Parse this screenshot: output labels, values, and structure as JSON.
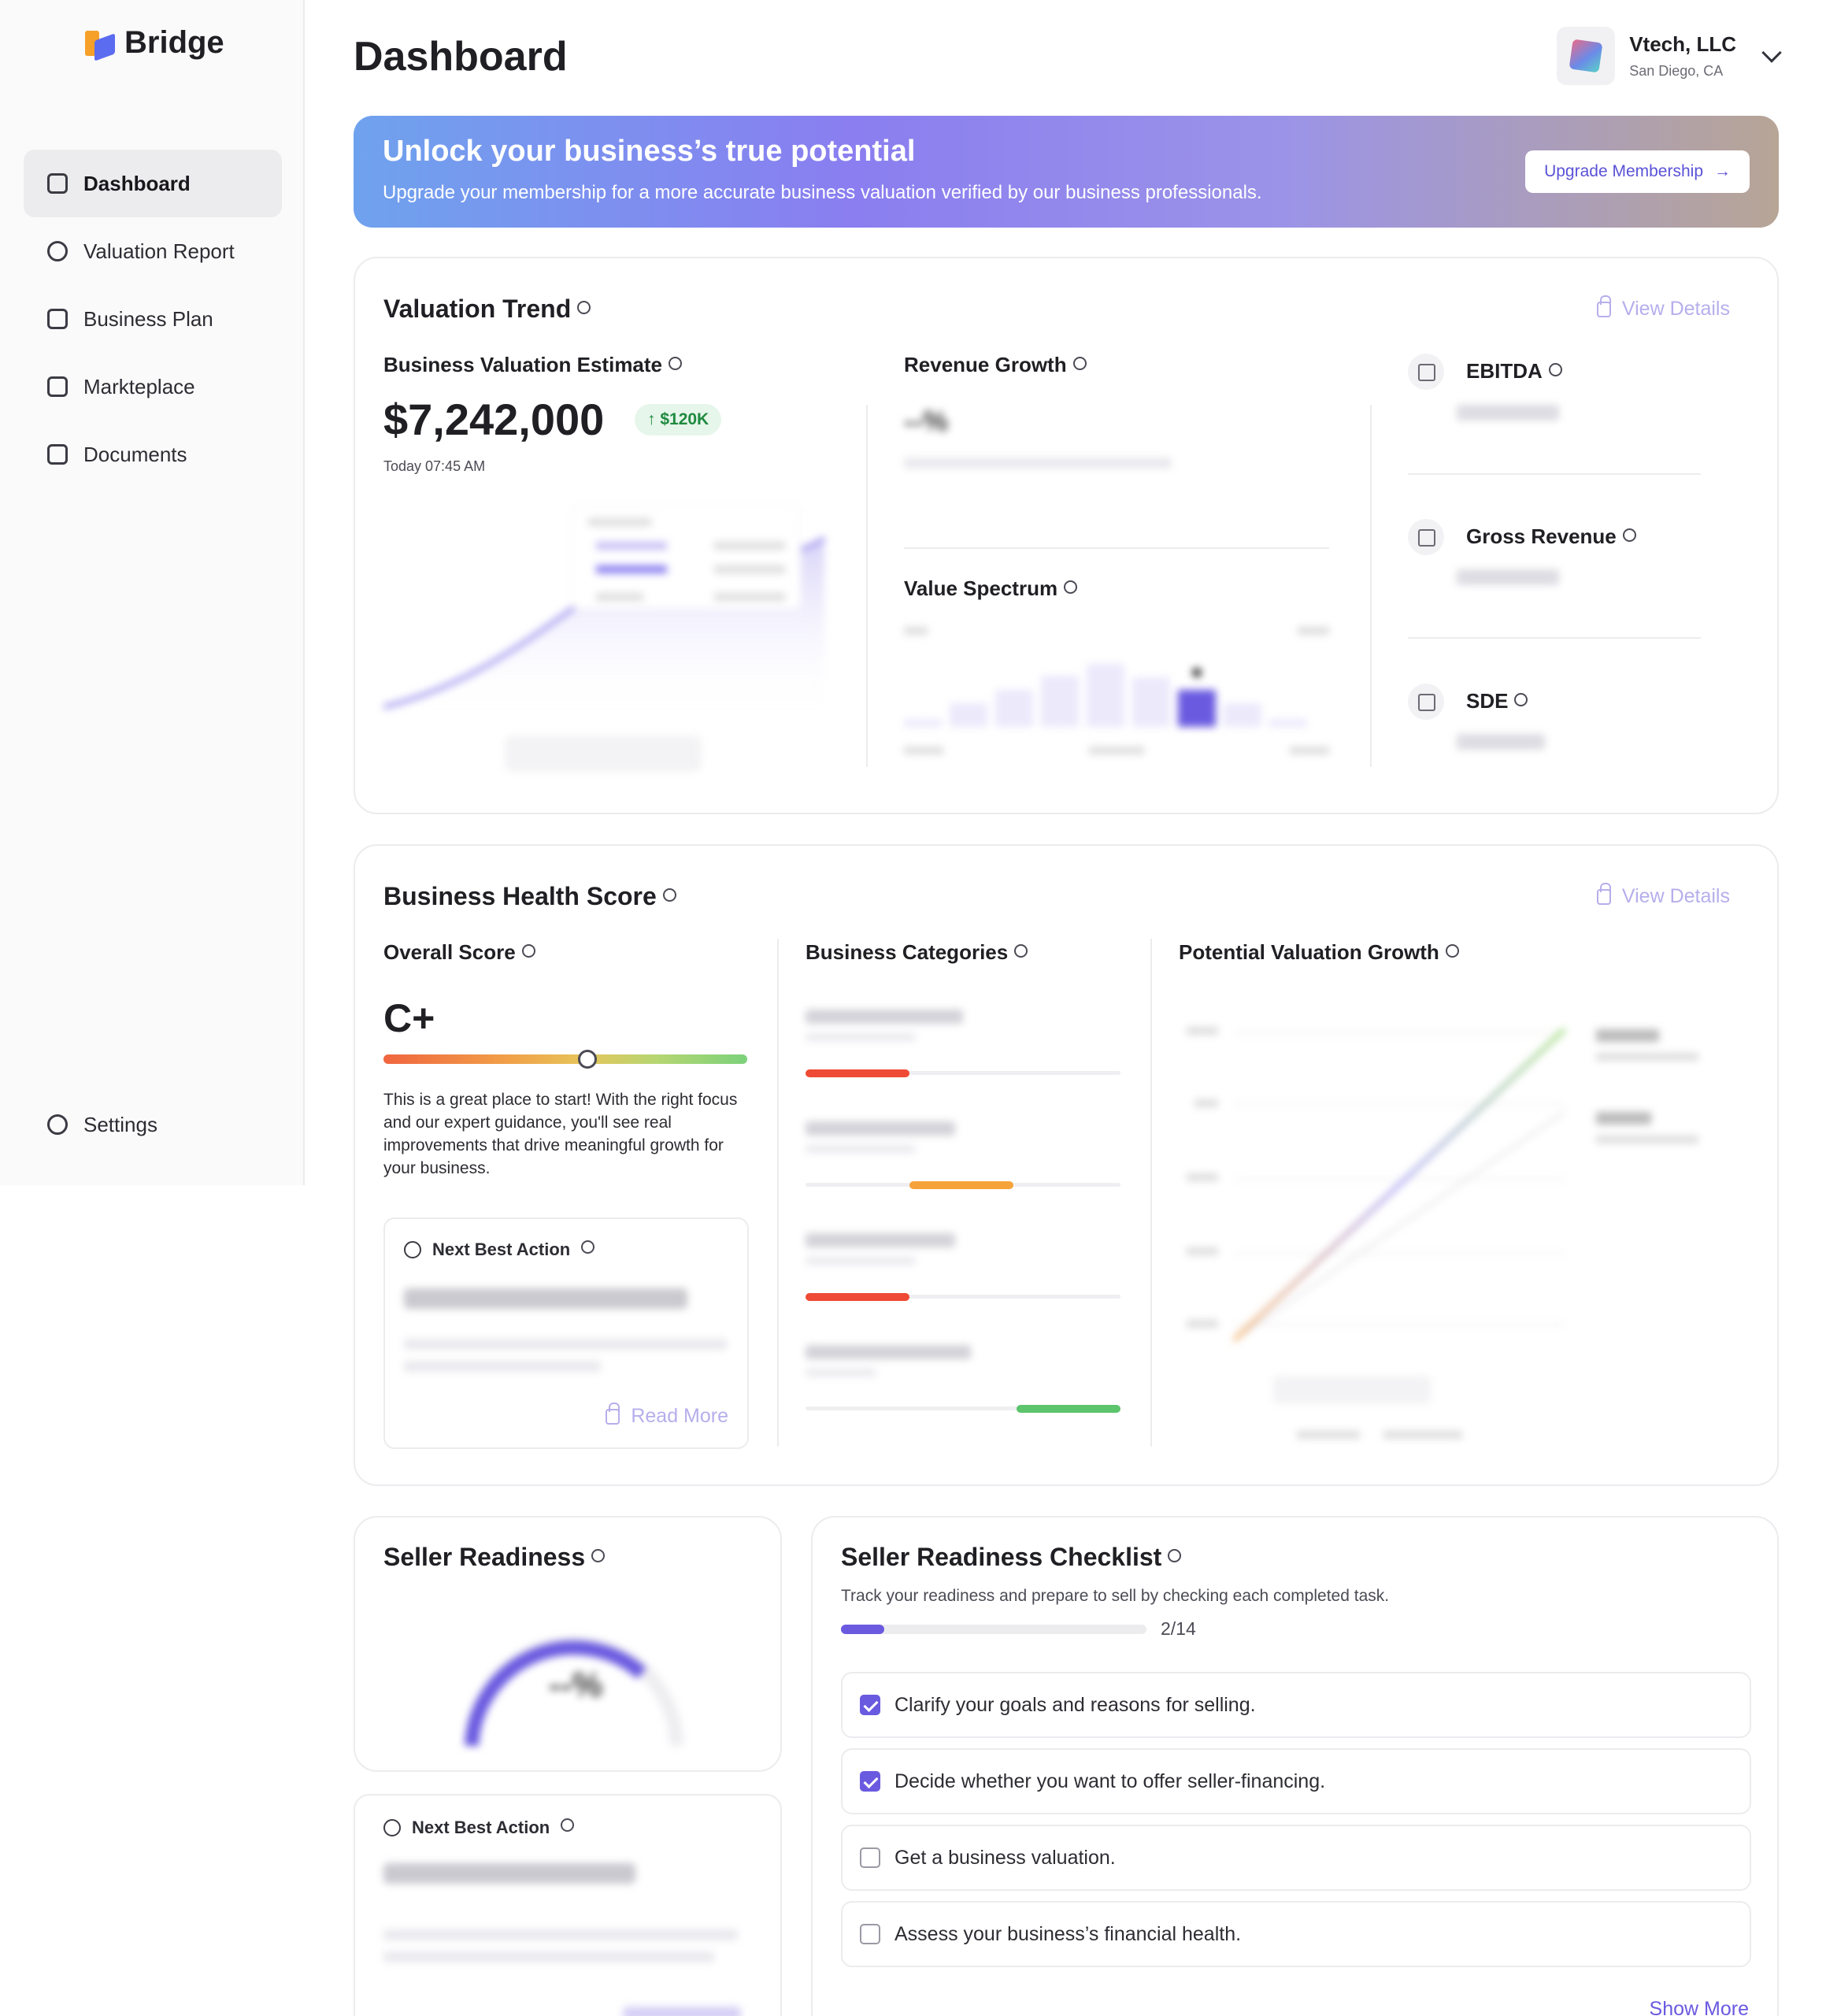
{
  "app": {
    "name": "Bridge"
  },
  "sidebar": {
    "items": [
      {
        "label": "Dashboard",
        "icon": "dashboard-icon",
        "active": true
      },
      {
        "label": "Valuation Report",
        "icon": "chart-icon"
      },
      {
        "label": "Business Plan",
        "icon": "clipboard-icon"
      },
      {
        "label": "Markteplace",
        "icon": "store-icon"
      },
      {
        "label": "Documents",
        "icon": "document-icon"
      }
    ],
    "settings_label": "Settings"
  },
  "header": {
    "title": "Dashboard",
    "account": {
      "name": "Vtech, LLC",
      "location": "San Diego, CA"
    }
  },
  "banner": {
    "title": "Unlock your business’s true potential",
    "subtitle": "Upgrade your membership for a more accurate business valuation verified by our business professionals.",
    "button_label": "Upgrade Membership"
  },
  "valuation_trend": {
    "title": "Valuation Trend",
    "view_details": "View Details",
    "estimate_label": "Business Valuation Estimate",
    "estimate_value": "$7,242,000",
    "change_badge": "$120K",
    "timestamp": "Today 07:45 AM",
    "revenue_growth_label": "Revenue Growth",
    "revenue_growth_value": "--%",
    "value_spectrum_label": "Value Spectrum",
    "metrics": [
      {
        "label": "EBITDA",
        "icon": "bar-chart-icon"
      },
      {
        "label": "Gross Revenue",
        "icon": "pie-chart-icon"
      },
      {
        "label": "SDE",
        "icon": "line-chart-icon"
      }
    ]
  },
  "health": {
    "title": "Business Health Score",
    "view_details": "View Details",
    "overall_label": "Overall Score",
    "grade": "C+",
    "score_level": 0.56,
    "description": "This is a great place to start! With the right focus and our expert guidance, you'll see real improvements that drive meaningful growth for your business.",
    "next_best_action_label": "Next Best Action",
    "read_more": "Read More",
    "categories_label": "Business Categories",
    "categories": [
      {
        "fill": 0.33,
        "color": "#ef4a35"
      },
      {
        "fill": 0.33,
        "color": "#f6a23a"
      },
      {
        "fill": 0.33,
        "color": "#ef4a35"
      },
      {
        "fill": 0.33,
        "color": "#5cc46b"
      }
    ],
    "growth_label": "Potential Valuation Growth"
  },
  "seller_readiness": {
    "title": "Seller Readiness",
    "value": "--%",
    "next_best_action_label": "Next Best Action"
  },
  "checklist": {
    "title": "Seller Readiness Checklist",
    "subtitle": "Track your readiness and prepare to sell by checking each completed task.",
    "progress_text": "2/14",
    "progress": 0.143,
    "items": [
      {
        "label": "Clarify your goals and reasons for selling.",
        "checked": true
      },
      {
        "label": "Decide whether you want to offer seller-financing.",
        "checked": true
      },
      {
        "label": "Get a business valuation.",
        "checked": false
      },
      {
        "label": "Assess your business’s financial health.",
        "checked": false
      }
    ],
    "show_more": "Show More"
  }
}
